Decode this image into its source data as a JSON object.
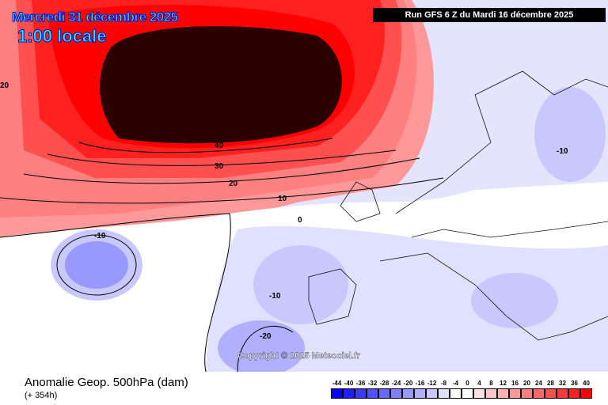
{
  "header": {
    "date": "Mercredi 31 décembre 2025",
    "hour": "1:00 locale",
    "run": "Run GFS 6 Z du Mardi 16 décembre 2025"
  },
  "copyright": "Copyright © 2025 Meteociel.fr",
  "footer": {
    "title": "Anomalie Geop. 500hPa (dam)",
    "lead": "(+ 354h)"
  },
  "contour_labels": [
    "40",
    "30",
    "20",
    "10",
    "0",
    "-10",
    "-10",
    "-10",
    "-20",
    "20"
  ],
  "legend": {
    "labels": [
      "-44",
      "-40",
      "-36",
      "-32",
      "-28",
      "-24",
      "-20",
      "-16",
      "-12",
      "-8",
      "-4",
      "0",
      "4",
      "8",
      "12",
      "16",
      "20",
      "24",
      "28",
      "32",
      "36",
      "40"
    ],
    "colors": [
      "#0000ff",
      "#2020ff",
      "#3838ff",
      "#5050ff",
      "#6868ff",
      "#8080ff",
      "#9898ff",
      "#b0b0ff",
      "#c8c8ff",
      "#e0e0ff",
      "#ffffff",
      "#ffffff",
      "#ffe0e0",
      "#ffc8c8",
      "#ffb0b0",
      "#ff9898",
      "#ff8080",
      "#ff6868",
      "#ff5050",
      "#ff3838",
      "#ff2020",
      "#ff0000"
    ]
  }
}
